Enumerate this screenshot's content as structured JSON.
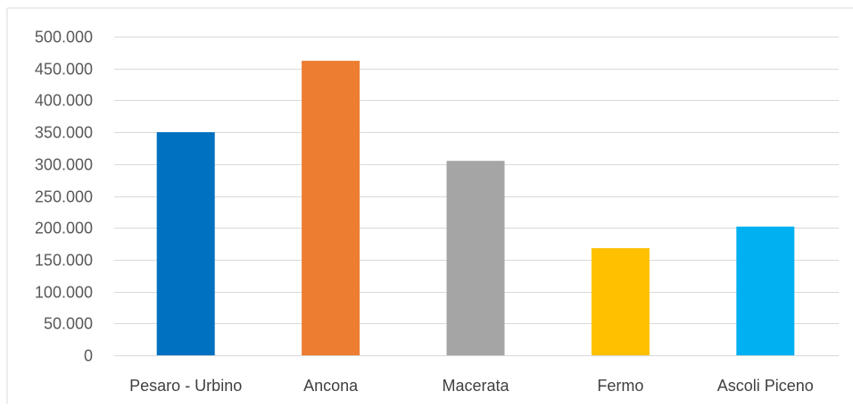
{
  "chart_data": {
    "type": "bar",
    "title": "",
    "xlabel": "",
    "ylabel": "",
    "categories": [
      "Pesaro - Urbino",
      "Ancona",
      "Macerata",
      "Fermo",
      "Ascoli Piceno"
    ],
    "values": [
      350000,
      462000,
      305000,
      168000,
      202000
    ],
    "colors": [
      "#0070c0",
      "#ed7d31",
      "#a5a5a5",
      "#ffc000",
      "#00b0f0"
    ],
    "ylim": [
      0,
      500000
    ],
    "yticks": [
      0,
      50000,
      100000,
      150000,
      200000,
      250000,
      300000,
      350000,
      400000,
      450000,
      500000
    ],
    "ytick_labels": [
      "0",
      "50.000",
      "100.000",
      "150.000",
      "200.000",
      "250.000",
      "300.000",
      "350.000",
      "400.000",
      "450.000",
      "500.000"
    ],
    "grid": true,
    "legend": "none"
  }
}
